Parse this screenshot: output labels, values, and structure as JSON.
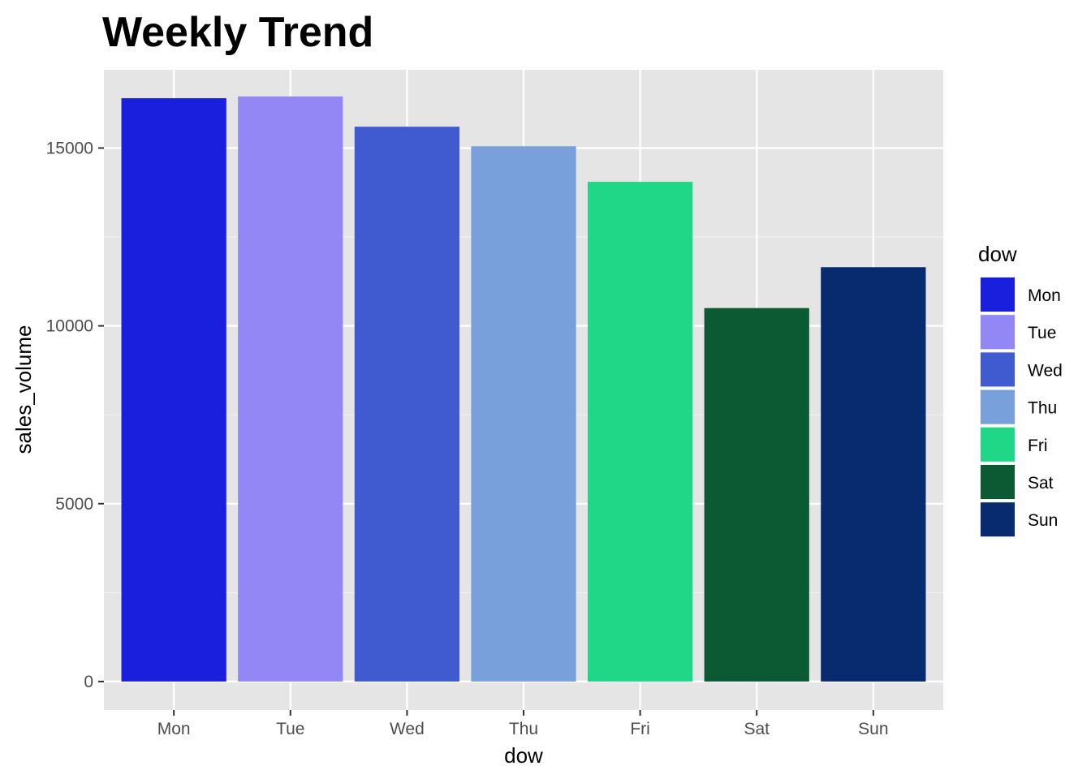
{
  "chart_data": {
    "type": "bar",
    "title": "Weekly Trend",
    "xlabel": "dow",
    "ylabel": "sales_volume",
    "categories": [
      "Mon",
      "Tue",
      "Wed",
      "Thu",
      "Fri",
      "Sat",
      "Sun"
    ],
    "values": [
      16400,
      16450,
      15600,
      15050,
      14050,
      10500,
      11650
    ],
    "colors": [
      "#1A1FDD",
      "#9387F5",
      "#405ACF",
      "#78A0DB",
      "#20D687",
      "#0C5A33",
      "#082B6F"
    ],
    "ylim": [
      -800,
      17200
    ],
    "yticks": [
      0,
      5000,
      10000,
      15000
    ],
    "ytick_labels": [
      "0",
      "5000",
      "10000",
      "15000"
    ],
    "grid": true,
    "legend": {
      "title": "dow",
      "position": "right",
      "items": [
        "Mon",
        "Tue",
        "Wed",
        "Thu",
        "Fri",
        "Sat",
        "Sun"
      ]
    }
  }
}
